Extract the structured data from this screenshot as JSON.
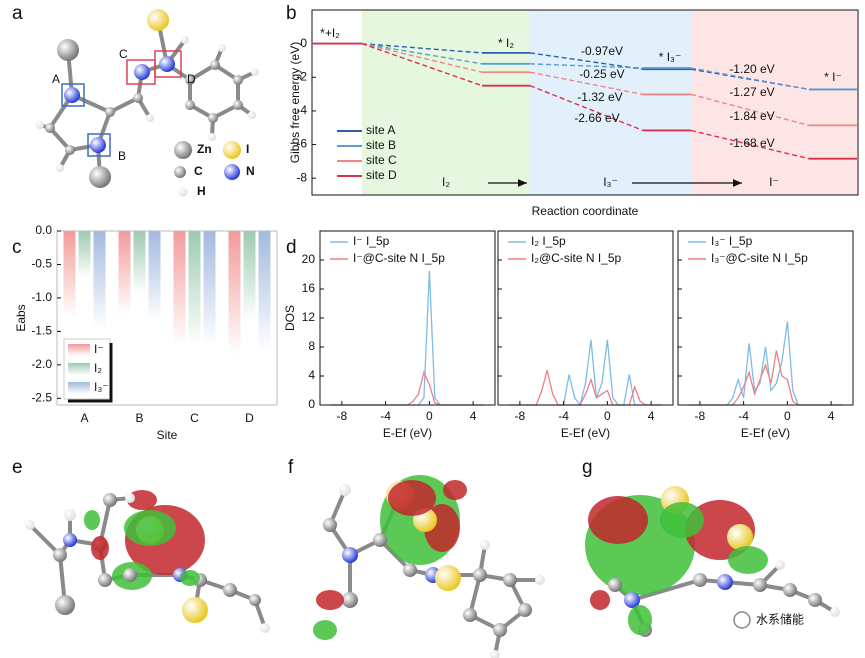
{
  "panel_labels": [
    "a",
    "b",
    "c",
    "d",
    "e",
    "f",
    "g"
  ],
  "molecule": {
    "site_labels": [
      "A",
      "B",
      "C",
      "D"
    ],
    "legend": [
      "Zn",
      "I",
      "C",
      "N",
      "H"
    ]
  },
  "watermark": "水系储能",
  "chart_data": [
    {
      "type": "energy",
      "ylabel": "Gibbs free energy (eV)",
      "xlabel": "Reaction coordinate",
      "categories": [
        "*+I₂",
        "* I₂",
        "* I₃⁻",
        "* I⁻"
      ],
      "regions": [
        {
          "label": "I₂",
          "color": "#e5f7df"
        },
        {
          "label": "I₃⁻",
          "color": "#e2f0fb"
        },
        {
          "label": "I⁻",
          "color": "#fde5e5"
        }
      ],
      "series": [
        {
          "name": "site A",
          "color": "#2f5fa8",
          "values": [
            0,
            -0.55,
            -1.52,
            -2.72
          ]
        },
        {
          "name": "site B",
          "color": "#5c9bd6",
          "values": [
            0,
            -1.2,
            -1.45,
            -2.72
          ]
        },
        {
          "name": "site C",
          "color": "#f08585",
          "values": [
            0,
            -1.7,
            -3.02,
            -4.86
          ]
        },
        {
          "name": "site D",
          "color": "#d8324f",
          "values": [
            0,
            -2.5,
            -5.16,
            -6.84
          ]
        }
      ],
      "annotations": [
        "-0.97eV",
        "-0.25 eV",
        "-1.32 eV",
        "-2.66 eV",
        "-1.20 eV",
        "-1.27 eV",
        "-1.84 eV",
        "-1.68 eV"
      ],
      "ylim": [
        -9,
        2
      ],
      "yticks": [
        0,
        -2,
        -4,
        -6,
        -8
      ]
    },
    {
      "type": "bar",
      "ylabel": "Eabs",
      "xlabel": "Site",
      "categories": [
        "A",
        "B",
        "C",
        "D"
      ],
      "category_colors": [
        "#4a7fc0",
        "#4a7fc0",
        "#e0507a",
        "#e0507a"
      ],
      "series": [
        {
          "name": "I⁻",
          "color": "#f49a9a",
          "values": [
            -1.3,
            -1.25,
            -1.7,
            -1.87
          ]
        },
        {
          "name": "I₂",
          "color": "#9ccab0",
          "values": [
            -0.7,
            -0.93,
            -1.7,
            -1.35
          ]
        },
        {
          "name": "I₃⁻",
          "color": "#a2b9de",
          "values": [
            -1.45,
            -1.35,
            -1.72,
            -1.8
          ]
        }
      ],
      "ylim": [
        -2.6,
        0
      ],
      "yticks": [
        {
          "value": 0,
          "label": "0.0"
        },
        -0.5,
        {
          "value": -1,
          "label": "-1.0"
        },
        -1.5,
        {
          "value": -2,
          "label": "-2.0"
        },
        -2.5
      ]
    },
    {
      "type": "line",
      "ylabel": "DOS",
      "xlabel": "E-Ef (eV)",
      "x": [
        -9,
        -8.5,
        -8,
        -7.5,
        -7,
        -6.5,
        -6,
        -5.5,
        -5,
        -4.5,
        -4,
        -3.5,
        -3,
        -2.5,
        -2,
        -1.5,
        -1,
        -0.5,
        0,
        0.5,
        1,
        1.5,
        2,
        2.5,
        3,
        3.5,
        4,
        4.5,
        5
      ],
      "series": [
        {
          "name": "I⁻ I_5p",
          "color": "#7fbbe6",
          "values": [
            0,
            0,
            0,
            0,
            0,
            0,
            0,
            0,
            0,
            0,
            0,
            0,
            0,
            0,
            0,
            0,
            0,
            1,
            18.5,
            1,
            0,
            0,
            0,
            0,
            0,
            0,
            0,
            0,
            0
          ]
        },
        {
          "name": "I⁻@C-site N I_5p",
          "color": "#ee7f86",
          "values": [
            0,
            0,
            0,
            0,
            0,
            0,
            0,
            0,
            0,
            0,
            0,
            0,
            0,
            0,
            0,
            0.5,
            1.5,
            4.5,
            2.8,
            0.3,
            0,
            0,
            0,
            0,
            0,
            0,
            0,
            0,
            0
          ]
        }
      ],
      "xlim": [
        -10,
        6
      ],
      "xticks": [
        -8,
        -4,
        0,
        4
      ],
      "ylim": [
        0,
        24
      ],
      "yticks": [
        0,
        4,
        8,
        12,
        16,
        20
      ]
    },
    {
      "type": "line",
      "xlabel": "E-Ef (eV)",
      "x": [
        -9,
        -8.5,
        -8,
        -7.5,
        -7,
        -6.5,
        -6,
        -5.5,
        -5,
        -4.5,
        -4,
        -3.5,
        -3,
        -2.5,
        -2,
        -1.5,
        -1,
        -0.5,
        0,
        0.5,
        1,
        1.5,
        2,
        2.5,
        3,
        3.5,
        4,
        4.5,
        5
      ],
      "series": [
        {
          "name": "I₂ I_5p",
          "color": "#7fbbe6",
          "values": [
            0,
            0,
            0,
            0,
            0,
            0,
            0,
            0,
            0,
            0,
            0,
            4.2,
            1,
            0,
            3,
            9,
            1,
            3,
            9,
            1,
            0,
            0,
            4.2,
            0,
            0,
            0,
            0,
            0,
            0
          ]
        },
        {
          "name": "I₂@C-site N I_5p",
          "color": "#ee7f86",
          "values": [
            0,
            0,
            0,
            0,
            0,
            0,
            2,
            4.8,
            1.5,
            0,
            0,
            0,
            0,
            0,
            1.5,
            3.5,
            1,
            1.5,
            2,
            0,
            0,
            0,
            0,
            2.5,
            0.5,
            0,
            0,
            0,
            0
          ]
        }
      ],
      "xlim": [
        -10,
        6
      ],
      "xticks": [
        -8,
        -4,
        0,
        4
      ],
      "ylim": [
        0,
        24
      ],
      "yticks": [
        0,
        4,
        8,
        12,
        16,
        20
      ]
    },
    {
      "type": "line",
      "xlabel": "E-Ef (eV)",
      "x": [
        -9,
        -8.5,
        -8,
        -7.5,
        -7,
        -6.5,
        -6,
        -5.5,
        -5,
        -4.5,
        -4,
        -3.5,
        -3,
        -2.5,
        -2,
        -1.5,
        -1,
        -0.5,
        0,
        0.5,
        1,
        1.5,
        2,
        2.5,
        3,
        3.5,
        4,
        4.5,
        5
      ],
      "series": [
        {
          "name": "I₃⁻ I_5p",
          "color": "#7fbbe6",
          "values": [
            0,
            0,
            0,
            0,
            0,
            0,
            0,
            0,
            1,
            3.5,
            1,
            8.5,
            2,
            3,
            8,
            2,
            3,
            6,
            11.5,
            2,
            0,
            0,
            0,
            0,
            0,
            0,
            0,
            0,
            0
          ]
        },
        {
          "name": "I₃⁻@C-site N I_5p",
          "color": "#ee7f86",
          "values": [
            0,
            0,
            0,
            0,
            0,
            0,
            0,
            0,
            0,
            1,
            2.5,
            4.5,
            1.5,
            3.5,
            5.5,
            3,
            7.5,
            4,
            3.5,
            0.5,
            0,
            0,
            0,
            0,
            0,
            0,
            0,
            0,
            0
          ]
        }
      ],
      "xlim": [
        -10,
        6
      ],
      "xticks": [
        -8,
        -4,
        0,
        4
      ],
      "ylim": [
        0,
        24
      ],
      "yticks": [
        0,
        4,
        8,
        12,
        16,
        20
      ]
    }
  ]
}
